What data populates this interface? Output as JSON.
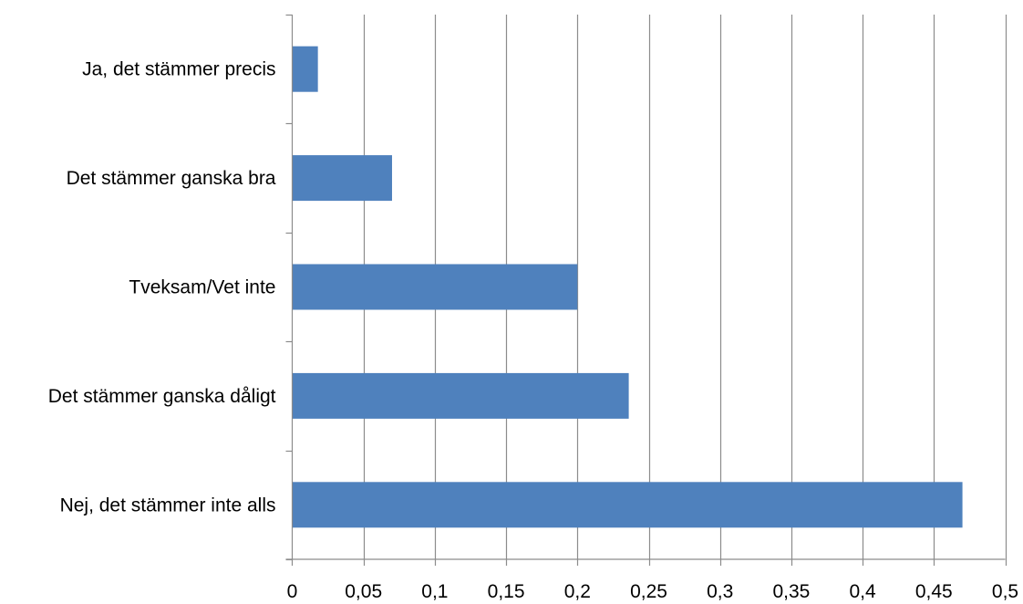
{
  "colors": {
    "bar": "#4f81bd",
    "grid": "#8c8c8c",
    "text": "#000000"
  },
  "chart_data": {
    "type": "bar",
    "orientation": "horizontal",
    "title": "",
    "xlabel": "",
    "ylabel": "",
    "categories": [
      "Ja, det stämmer precis",
      "Det stämmer ganska bra",
      "Tveksam/Vet inte",
      "Det stämmer ganska dåligt",
      "Nej, det stämmer inte alls"
    ],
    "values": [
      0.018,
      0.07,
      0.2,
      0.236,
      0.47
    ],
    "xlim": [
      0,
      0.5
    ],
    "x_ticks": [
      0,
      0.05,
      0.1,
      0.15,
      0.2,
      0.25,
      0.3,
      0.35,
      0.4,
      0.45,
      0.5
    ],
    "x_tick_labels": [
      "0",
      "0,05",
      "0,1",
      "0,15",
      "0,2",
      "0,25",
      "0,3",
      "0,35",
      "0,4",
      "0,45",
      "0,5"
    ],
    "grid": true,
    "legend": "none"
  }
}
